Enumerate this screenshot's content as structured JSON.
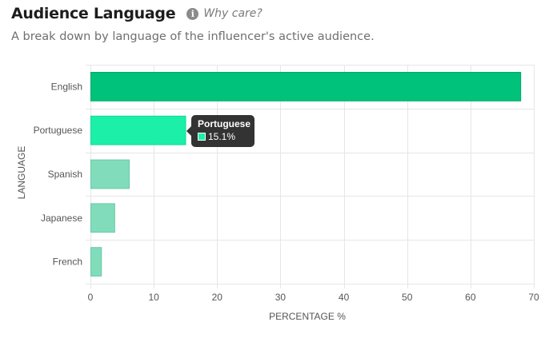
{
  "header": {
    "title": "Audience Language",
    "info_icon": "info-icon",
    "link_label": "Why care?"
  },
  "subtitle": "A break down by language of the influencer's active audience.",
  "tooltip": {
    "category": "Portuguese",
    "value_label": "15.1%",
    "color": "#1cf0a8"
  },
  "chart_data": {
    "type": "bar",
    "orientation": "horizontal",
    "categories": [
      "English",
      "Portuguese",
      "Spanish",
      "Japanese",
      "French"
    ],
    "values": [
      68,
      15.1,
      6.2,
      3.9,
      1.8
    ],
    "colors": [
      "#00c27a",
      "#1cf0a8",
      "#80dcba",
      "#80dcba",
      "#80dcba"
    ],
    "border_colors": [
      "#00a86a",
      "#14d896",
      "#6cc9a6",
      "#6cc9a6",
      "#6cc9a6"
    ],
    "xlabel": "PERCENTAGE %",
    "ylabel": "LANGUAGE",
    "xlim": [
      0,
      70
    ],
    "xticks": [
      0,
      10,
      20,
      30,
      40,
      50,
      60,
      70
    ],
    "grid": true,
    "grid_color": "#e6e6e6"
  }
}
